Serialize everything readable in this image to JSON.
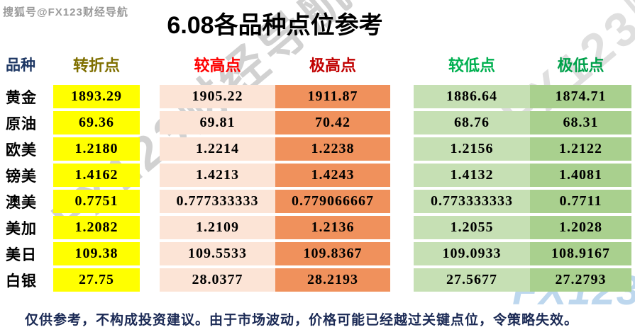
{
  "page": {
    "sohu_watermark": "搜狐号@FX123财经导航",
    "title": "6.08各品种点位参考",
    "diagonal_watermark": "FX123财经导航",
    "corner_logo": "FX123",
    "note": "仅供参考，不构成投资建议。由于市场波动，价格可能已经越过关键点位，令策略失效。"
  },
  "table": {
    "headers": {
      "product": "品种",
      "pivot": "转折点",
      "higher": "较高点",
      "extreme_high": "极高点",
      "lower": "较低点",
      "extreme_low": "极低点"
    },
    "rows": [
      {
        "label": "黄金",
        "values": [
          "1893.29",
          "1905.22",
          "1911.87",
          "1886.64",
          "1874.71"
        ]
      },
      {
        "label": "原油",
        "values": [
          "69.36",
          "69.81",
          "70.42",
          "68.76",
          "68.31"
        ]
      },
      {
        "label": "欧美",
        "values": [
          "1.2180",
          "1.2214",
          "1.2238",
          "1.2156",
          "1.2122"
        ]
      },
      {
        "label": "镑美",
        "values": [
          "1.4162",
          "1.4213",
          "1.4243",
          "1.4132",
          "1.4081"
        ]
      },
      {
        "label": "澳美",
        "values": [
          "0.7751",
          "0.777333333",
          "0.779066667",
          "0.773333333",
          "0.7711"
        ]
      },
      {
        "label": "美加",
        "values": [
          "1.2082",
          "1.2109",
          "1.2136",
          "1.2055",
          "1.2028"
        ]
      },
      {
        "label": "美日",
        "values": [
          "109.38",
          "109.5533",
          "109.8367",
          "109.0933",
          "108.9167"
        ]
      },
      {
        "label": "白银",
        "values": [
          "27.75",
          "28.0377",
          "28.2193",
          "27.5677",
          "27.2793"
        ]
      }
    ]
  },
  "colors": {
    "pivot_cell": "#FFFF00",
    "higher_cell": "#FCE4D6",
    "extreme_high_cell": "#F0915C",
    "lower_cell": "#C6E0B4",
    "extreme_low_cell": "#A9D08E",
    "header_product": "#1F3864",
    "header_pivot": "#7F6F00",
    "header_higher": "#FF0000",
    "header_extreme_high": "#C00000",
    "header_lower": "#00B050",
    "header_extreme_low": "#00A14B",
    "note_text": "#1B2A55",
    "logo_blue": "#BDD7EE"
  }
}
